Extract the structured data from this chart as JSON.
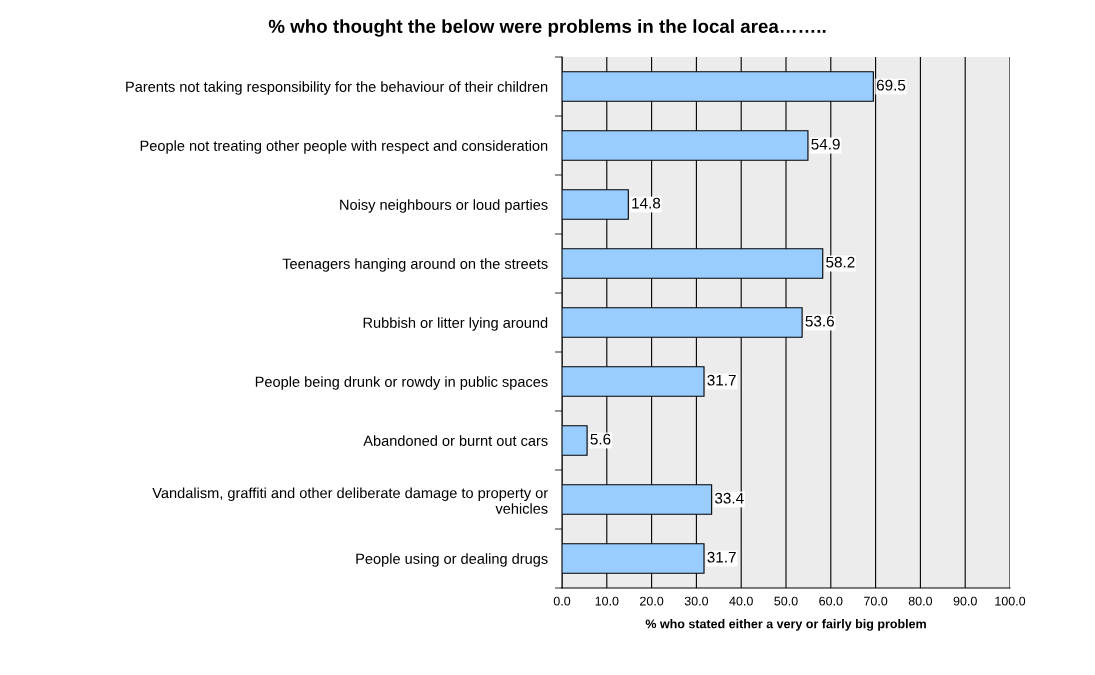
{
  "chart_data": {
    "type": "bar",
    "orientation": "horizontal",
    "title": "% who thought the below were problems in the local area……..",
    "xlabel": "% who stated either a very or fairly big problem",
    "categories": [
      "Parents not taking responsibility for the behaviour of their children",
      "People not treating other people with respect and consideration",
      "Noisy neighbours or loud parties",
      "Teenagers hanging around on the streets",
      "Rubbish or litter lying around",
      "People being drunk or rowdy in public spaces",
      "Abandoned or burnt out cars",
      "Vandalism, graffiti and other deliberate damage to property or\nvehicles",
      "People using or dealing drugs"
    ],
    "values": [
      69.5,
      54.9,
      14.8,
      58.2,
      53.6,
      31.7,
      5.6,
      33.4,
      31.7
    ],
    "color": "#99ccff",
    "data_labels": true,
    "grid": "x",
    "legend": false,
    "xlim": [
      0,
      100
    ],
    "xticks": [
      {
        "value": 0,
        "label": "0.0"
      },
      {
        "value": 10,
        "label": "10.0"
      },
      {
        "value": 20,
        "label": "20.0"
      },
      {
        "value": 30,
        "label": "30.0"
      },
      {
        "value": 40,
        "label": "40.0"
      },
      {
        "value": 50,
        "label": "50.0"
      },
      {
        "value": 60,
        "label": "60.0"
      },
      {
        "value": 70,
        "label": "70.0"
      },
      {
        "value": 80,
        "label": "80.0"
      },
      {
        "value": 90,
        "label": "90.0"
      },
      {
        "value": 100,
        "label": "100.0"
      }
    ]
  }
}
